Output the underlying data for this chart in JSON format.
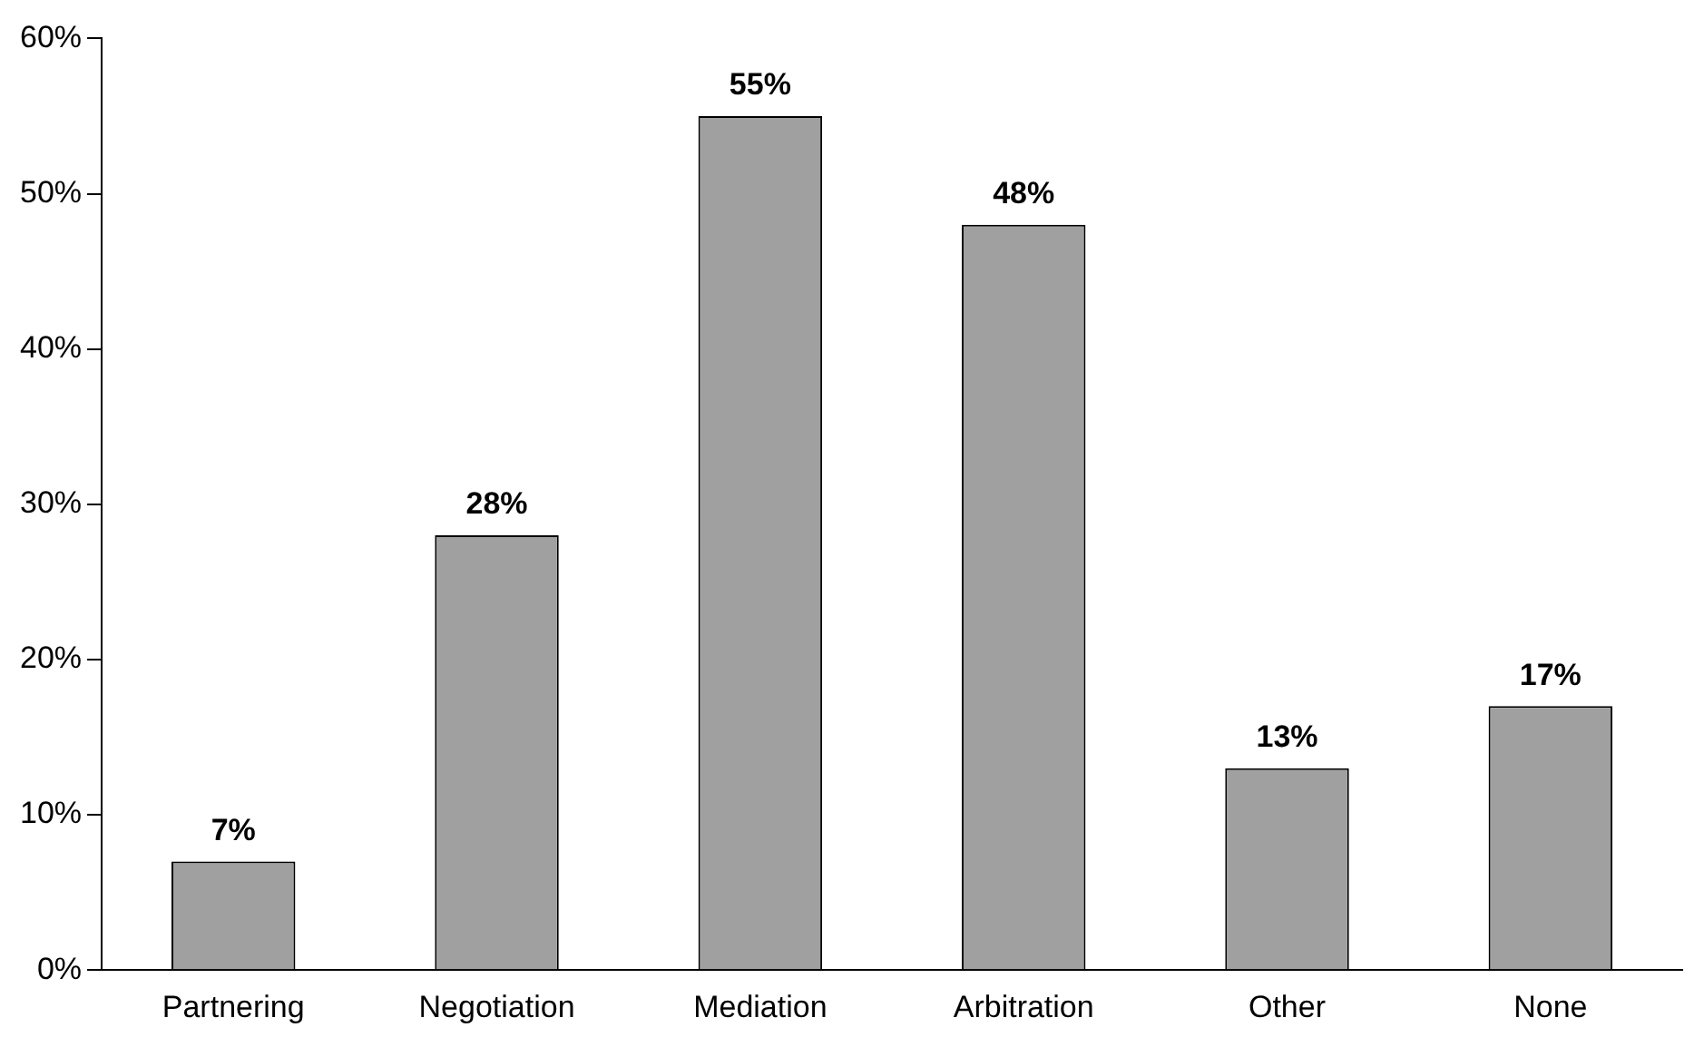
{
  "chart_data": {
    "type": "bar",
    "categories": [
      "Partnering",
      "Negotiation",
      "Mediation",
      "Arbitration",
      "Other",
      "None"
    ],
    "values": [
      7,
      28,
      55,
      48,
      13,
      17
    ],
    "color": "#a0a0a0",
    "data_labels": true,
    "value_labels": [
      "7%",
      "28%",
      "55%",
      "48%",
      "13%",
      "17%"
    ],
    "ylim": [
      0,
      60
    ],
    "yticks": [
      {
        "value": 0,
        "label": "0%"
      },
      {
        "value": 10,
        "label": "10%"
      },
      {
        "value": 20,
        "label": "20%"
      },
      {
        "value": 30,
        "label": "30%"
      },
      {
        "value": 40,
        "label": "40%"
      },
      {
        "value": 50,
        "label": "50%"
      },
      {
        "value": 60,
        "label": "60%"
      }
    ],
    "grid": false,
    "legend": false
  }
}
